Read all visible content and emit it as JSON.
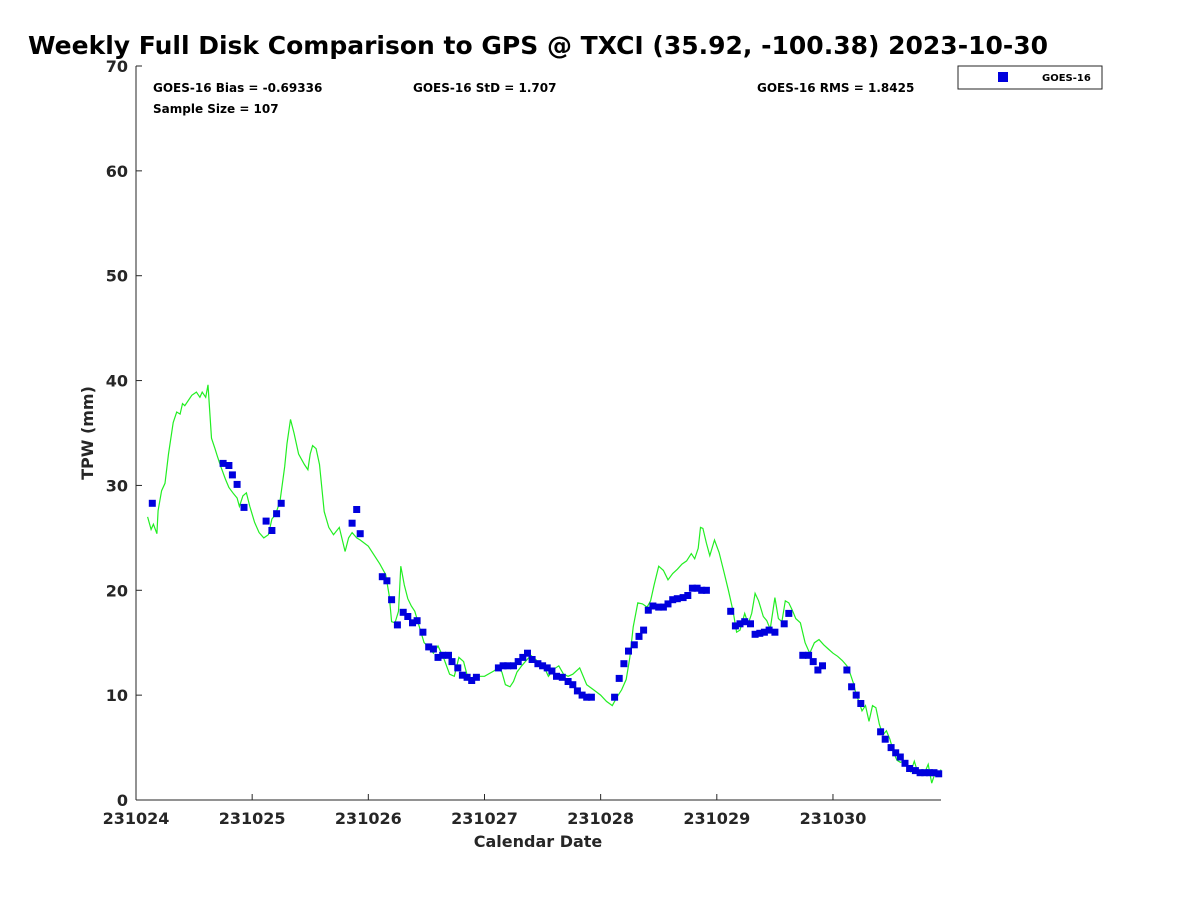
{
  "chart_data": {
    "type": "scatter",
    "title": "Weekly Full Disk Comparison to GPS @ TXCI (35.92, -100.38) 2023-10-30",
    "xlabel": "Calendar Date",
    "ylabel": "TPW (mm)",
    "x_tick_labels": [
      "231024",
      "231025",
      "231026",
      "231027",
      "231028",
      "231029",
      "231030"
    ],
    "y_tick_labels": [
      "0",
      "10",
      "20",
      "30",
      "40",
      "50",
      "60",
      "70"
    ],
    "xlim": [
      0,
      6.93
    ],
    "ylim": [
      0,
      70
    ],
    "grid": false,
    "legend_position": "top-right, outside plot",
    "stats": {
      "bias": "GOES-16 Bias = -0.69336",
      "std": "GOES-16 StD = 1.707",
      "rms": "GOES-16 RMS = 1.8425",
      "sample": "Sample Size = 107"
    },
    "series": [
      {
        "name": "GOES-16",
        "kind": "scatter",
        "color": "#0000dd",
        "marker": "square",
        "x": [
          0.14,
          0.75,
          0.8,
          0.83,
          0.87,
          0.93,
          1.12,
          1.17,
          1.21,
          1.25,
          1.86,
          1.9,
          1.93,
          2.12,
          2.16,
          2.2,
          2.25,
          2.3,
          2.34,
          2.38,
          2.42,
          2.47,
          2.52,
          2.56,
          2.6,
          2.64,
          2.69,
          2.72,
          2.77,
          2.81,
          2.85,
          2.89,
          2.93,
          3.12,
          3.16,
          3.2,
          3.25,
          3.29,
          3.33,
          3.37,
          3.41,
          3.46,
          3.5,
          3.54,
          3.58,
          3.62,
          3.67,
          3.72,
          3.76,
          3.8,
          3.84,
          3.88,
          3.92,
          4.12,
          4.16,
          4.2,
          4.24,
          4.29,
          4.33,
          4.37,
          4.41,
          4.45,
          4.5,
          4.54,
          4.58,
          4.62,
          4.66,
          4.71,
          4.75,
          4.79,
          4.83,
          4.87,
          4.91,
          5.12,
          5.16,
          5.2,
          5.24,
          5.29,
          5.33,
          5.37,
          5.41,
          5.45,
          5.5,
          5.58,
          5.62,
          5.74,
          5.79,
          5.83,
          5.87,
          5.91,
          6.12,
          6.16,
          6.2,
          6.24,
          6.41,
          6.45,
          6.5,
          6.54,
          6.58,
          6.62,
          6.66,
          6.71,
          6.75,
          6.79,
          6.83,
          6.87,
          6.91
        ],
        "y": [
          28.3,
          32.1,
          31.9,
          31.0,
          30.1,
          27.9,
          26.6,
          25.7,
          27.3,
          28.3,
          26.4,
          27.7,
          25.4,
          21.3,
          20.9,
          19.1,
          16.7,
          17.9,
          17.5,
          16.9,
          17.1,
          16.0,
          14.6,
          14.4,
          13.6,
          13.8,
          13.8,
          13.2,
          12.6,
          11.9,
          11.7,
          11.4,
          11.7,
          12.6,
          12.8,
          12.8,
          12.8,
          13.2,
          13.6,
          14.0,
          13.4,
          13.0,
          12.8,
          12.6,
          12.3,
          11.8,
          11.7,
          11.3,
          11.0,
          10.4,
          10.0,
          9.8,
          9.8,
          9.8,
          11.6,
          13.0,
          14.2,
          14.8,
          15.6,
          16.2,
          18.1,
          18.5,
          18.4,
          18.4,
          18.7,
          19.1,
          19.2,
          19.3,
          19.5,
          20.2,
          20.2,
          20.0,
          20.0,
          18.0,
          16.6,
          16.8,
          17.0,
          16.8,
          15.8,
          15.9,
          16.0,
          16.2,
          16.0,
          16.8,
          17.8,
          13.8,
          13.8,
          13.2,
          12.4,
          12.8,
          12.4,
          10.8,
          10.0,
          9.2,
          6.5,
          5.8,
          5.0,
          4.5,
          4.1,
          3.5,
          3.0,
          2.8,
          2.6,
          2.6,
          2.6,
          2.6,
          2.5
        ]
      },
      {
        "kind": "line",
        "color": "#22ee22",
        "x": [
          0.1,
          0.13,
          0.15,
          0.18,
          0.19,
          0.22,
          0.25,
          0.28,
          0.32,
          0.35,
          0.38,
          0.4,
          0.42,
          0.45,
          0.48,
          0.52,
          0.55,
          0.57,
          0.6,
          0.62,
          0.65,
          0.68,
          0.7,
          0.73,
          0.77,
          0.8,
          0.84,
          0.87,
          0.89,
          0.92,
          0.95,
          0.98,
          1.02,
          1.06,
          1.1,
          1.14,
          1.17,
          1.2,
          1.24,
          1.28,
          1.3,
          1.33,
          1.36,
          1.4,
          1.45,
          1.48,
          1.5,
          1.52,
          1.55,
          1.58,
          1.62,
          1.66,
          1.7,
          1.75,
          1.8,
          1.83,
          1.86,
          1.9,
          1.93,
          2.0,
          2.1,
          2.15,
          2.18,
          2.2,
          2.23,
          2.26,
          2.28,
          2.31,
          2.34,
          2.37,
          2.4,
          2.44,
          2.48,
          2.52,
          2.56,
          2.6,
          2.65,
          2.7,
          2.74,
          2.78,
          2.82,
          2.86,
          2.92,
          3.0,
          3.08,
          3.12,
          3.15,
          3.18,
          3.22,
          3.25,
          3.28,
          3.32,
          3.36,
          3.4,
          3.44,
          3.47,
          3.5,
          3.55,
          3.6,
          3.64,
          3.68,
          3.72,
          3.76,
          3.82,
          3.88,
          3.94,
          4.0,
          4.05,
          4.1,
          4.14,
          4.18,
          4.22,
          4.25,
          4.28,
          4.32,
          4.36,
          4.4,
          4.43,
          4.46,
          4.5,
          4.54,
          4.58,
          4.62,
          4.66,
          4.7,
          4.74,
          4.78,
          4.81,
          4.84,
          4.86,
          4.88,
          4.91,
          4.94,
          4.98,
          5.02,
          5.06,
          5.1,
          5.14,
          5.17,
          5.2,
          5.24,
          5.27,
          5.3,
          5.33,
          5.36,
          5.4,
          5.43,
          5.46,
          5.5,
          5.53,
          5.56,
          5.59,
          5.62,
          5.65,
          5.68,
          5.72,
          5.76,
          5.8,
          5.84,
          5.88,
          5.92,
          5.96,
          6.0,
          6.04,
          6.08,
          6.12,
          6.15,
          6.18,
          6.2,
          6.22,
          6.25,
          6.28,
          6.31,
          6.34,
          6.37,
          6.4,
          6.43,
          6.46,
          6.49,
          6.52,
          6.55,
          6.58,
          6.61,
          6.64,
          6.67,
          6.7,
          6.73,
          6.76,
          6.79,
          6.82,
          6.85,
          6.88,
          6.91,
          6.93
        ],
        "y": [
          27.0,
          25.8,
          26.3,
          25.4,
          27.6,
          29.5,
          30.2,
          33.0,
          36.0,
          37.0,
          36.8,
          37.8,
          37.6,
          38.1,
          38.6,
          38.9,
          38.4,
          38.9,
          38.4,
          39.6,
          34.5,
          33.5,
          32.8,
          31.8,
          30.6,
          29.8,
          29.2,
          28.8,
          28.0,
          29.0,
          29.3,
          28.0,
          26.5,
          25.5,
          25.0,
          25.3,
          26.8,
          27.2,
          28.5,
          31.8,
          34.0,
          36.3,
          35.0,
          33.0,
          32.0,
          31.5,
          33.0,
          33.8,
          33.5,
          32.0,
          27.5,
          26.0,
          25.3,
          26.0,
          23.7,
          25.0,
          25.5,
          25.0,
          24.8,
          24.2,
          22.5,
          21.5,
          19.5,
          17.0,
          16.9,
          18.0,
          22.3,
          20.5,
          19.2,
          18.5,
          18.0,
          16.5,
          15.0,
          14.6,
          14.0,
          14.7,
          13.5,
          12.0,
          11.8,
          13.6,
          13.2,
          11.5,
          11.8,
          11.8,
          12.3,
          12.6,
          12.2,
          11.0,
          10.8,
          11.3,
          12.2,
          12.8,
          13.3,
          13.8,
          13.4,
          13.1,
          13.0,
          11.8,
          12.5,
          12.8,
          12.0,
          11.8,
          12.0,
          12.6,
          11.0,
          10.5,
          10.0,
          9.4,
          9.0,
          9.8,
          10.5,
          11.5,
          13.5,
          16.5,
          18.8,
          18.7,
          18.4,
          19.0,
          20.5,
          22.3,
          21.9,
          21.0,
          21.6,
          22.0,
          22.5,
          22.8,
          23.5,
          23.0,
          24.0,
          26.0,
          25.9,
          24.5,
          23.3,
          24.8,
          23.6,
          21.8,
          20.0,
          18.0,
          16.0,
          16.2,
          17.8,
          16.8,
          17.8,
          19.7,
          19.0,
          17.5,
          17.1,
          16.3,
          19.3,
          17.3,
          17.0,
          19.0,
          18.8,
          18.1,
          17.3,
          16.9,
          15.0,
          14.0,
          15.0,
          15.3,
          14.8,
          14.4,
          14.0,
          13.7,
          13.3,
          12.8,
          12.0,
          11.0,
          10.0,
          9.5,
          8.5,
          9.0,
          7.5,
          9.0,
          8.8,
          7.2,
          6.2,
          6.6,
          5.8,
          4.6,
          3.8,
          3.6,
          3.7,
          3.3,
          2.7,
          3.7,
          2.6,
          2.5,
          2.6,
          3.4,
          1.6,
          2.6,
          2.5,
          2.9
        ]
      }
    ]
  }
}
